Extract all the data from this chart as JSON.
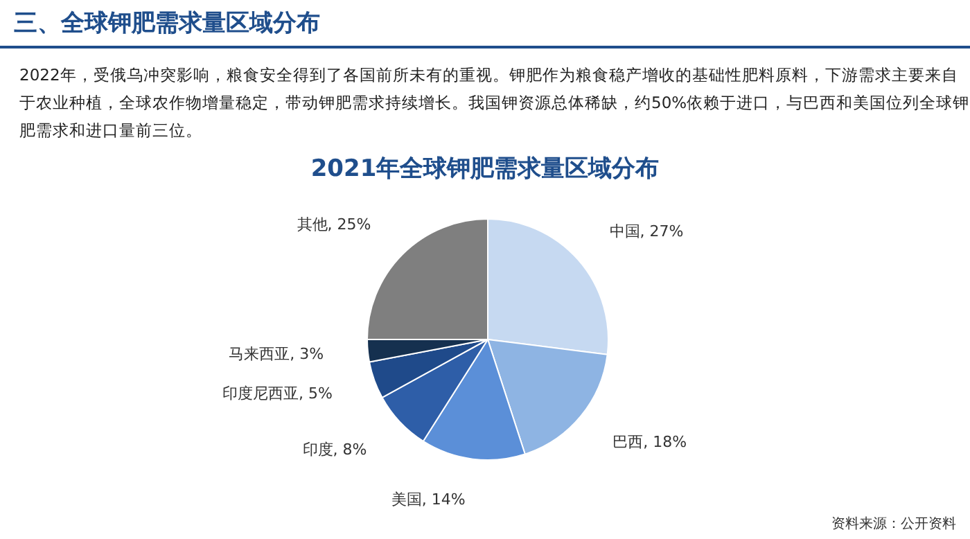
{
  "chart_data": {
    "type": "pie",
    "title": "2021年全球钾肥需求量区域分布",
    "categories": [
      "中国",
      "巴西",
      "美国",
      "印度",
      "印度尼西亚",
      "马来西亚",
      "其他"
    ],
    "values": [
      27,
      18,
      14,
      8,
      5,
      3,
      25
    ],
    "colors": [
      "#c6d9f1",
      "#8eb4e3",
      "#5b8fd8",
      "#2e5ea8",
      "#1f4a8a",
      "#15304f",
      "#7f7f7f"
    ],
    "value_labels": [
      ", 27%",
      ", 18%",
      ", 14%",
      ", 8%",
      ", 5%",
      ", 3%",
      ", 25%"
    ],
    "annotations": [
      "三、全球钾肥需求量区域分布",
      "2022年，受俄乌冲突影响，粮食安全得到了各国前所未有的重视。钾肥作为粮食稳产增收的基础性肥料原料，下游需求主要来自于农业种植，全球农作物增量稳定，带动钾肥需求持续增长。我国钾资源总体稀缺，约50%依赖于进口，与巴西和美国位列全球钾肥需求和进口量前三位。",
      "资料来源：公开资料"
    ]
  }
}
